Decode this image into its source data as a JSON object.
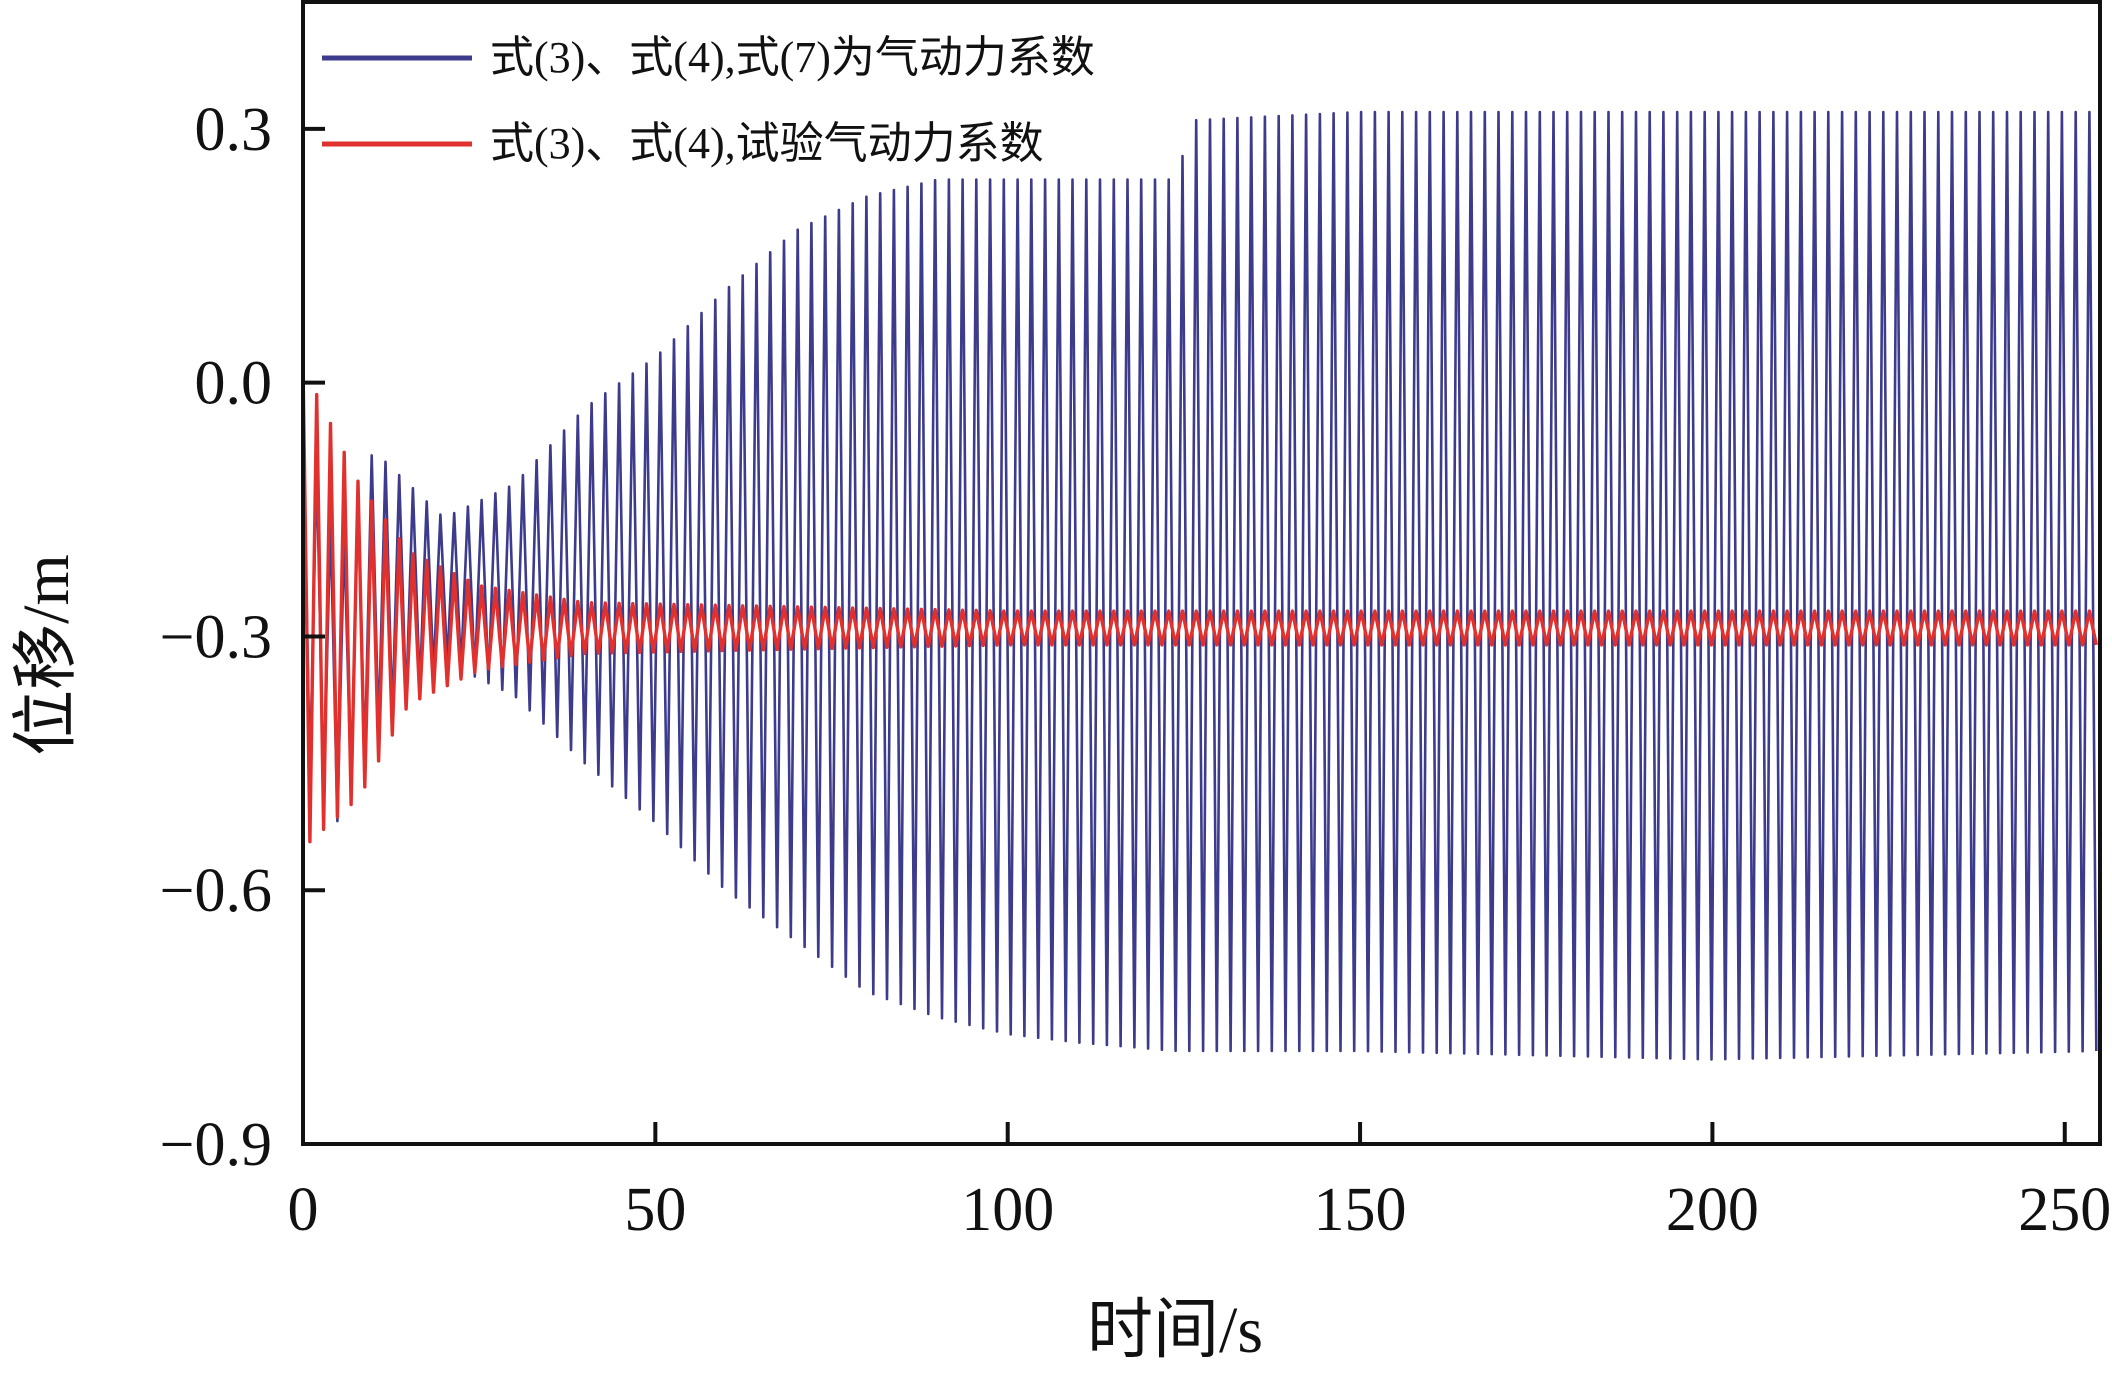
{
  "chart_data": {
    "type": "line",
    "title": "",
    "xlabel": "时间/s",
    "ylabel": "位移/m",
    "xlim": [
      0,
      255
    ],
    "ylim": [
      -0.9,
      0.45
    ],
    "xticks": [
      0,
      50,
      100,
      150,
      200,
      250
    ],
    "yticks": [
      -0.9,
      -0.6,
      -0.3,
      0.0,
      0.3
    ],
    "xtick_labels": [
      "0",
      "50",
      "100",
      "150",
      "200",
      "250"
    ],
    "ytick_labels": [
      "−0.9",
      "−0.6",
      "−0.3",
      "0.0",
      "0.3"
    ],
    "grid": false,
    "legend_position": "top-left",
    "series": [
      {
        "name": "式(3)、式(4),式(7)为气动力系数",
        "color": "#3c3b8c",
        "period_s": 1.95,
        "envelope": [
          {
            "t": 0,
            "min": -0.45,
            "max": -0.03
          },
          {
            "t": 5,
            "min": -0.52,
            "max": -0.2
          },
          {
            "t": 10,
            "min": -0.42,
            "max": -0.08
          },
          {
            "t": 20,
            "min": -0.33,
            "max": -0.16
          },
          {
            "t": 30,
            "min": -0.37,
            "max": -0.12
          },
          {
            "t": 40,
            "min": -0.45,
            "max": -0.03
          },
          {
            "t": 50,
            "min": -0.52,
            "max": 0.03
          },
          {
            "t": 60,
            "min": -0.6,
            "max": 0.11
          },
          {
            "t": 70,
            "min": -0.66,
            "max": 0.18
          },
          {
            "t": 80,
            "min": -0.72,
            "max": 0.22
          },
          {
            "t": 90,
            "min": -0.75,
            "max": 0.24
          },
          {
            "t": 100,
            "min": -0.77,
            "max": 0.24
          },
          {
            "t": 110,
            "min": -0.78,
            "max": 0.24
          },
          {
            "t": 124,
            "min": -0.79,
            "max": 0.24
          },
          {
            "t": 126,
            "min": -0.79,
            "max": 0.31
          },
          {
            "t": 150,
            "min": -0.79,
            "max": 0.32
          },
          {
            "t": 200,
            "min": -0.8,
            "max": 0.32
          },
          {
            "t": 255,
            "min": -0.79,
            "max": 0.32
          }
        ]
      },
      {
        "name": "式(3)、式(4),试验气动力系数",
        "color": "#e0312f",
        "period_s": 1.95,
        "envelope": [
          {
            "t": 0,
            "min": -0.55,
            "max": 0.02
          },
          {
            "t": 8,
            "min": -0.49,
            "max": -0.12
          },
          {
            "t": 15,
            "min": -0.38,
            "max": -0.2
          },
          {
            "t": 25,
            "min": -0.34,
            "max": -0.24
          },
          {
            "t": 40,
            "min": -0.32,
            "max": -0.26
          },
          {
            "t": 100,
            "min": -0.31,
            "max": -0.27
          },
          {
            "t": 255,
            "min": -0.31,
            "max": -0.27
          }
        ]
      }
    ]
  }
}
